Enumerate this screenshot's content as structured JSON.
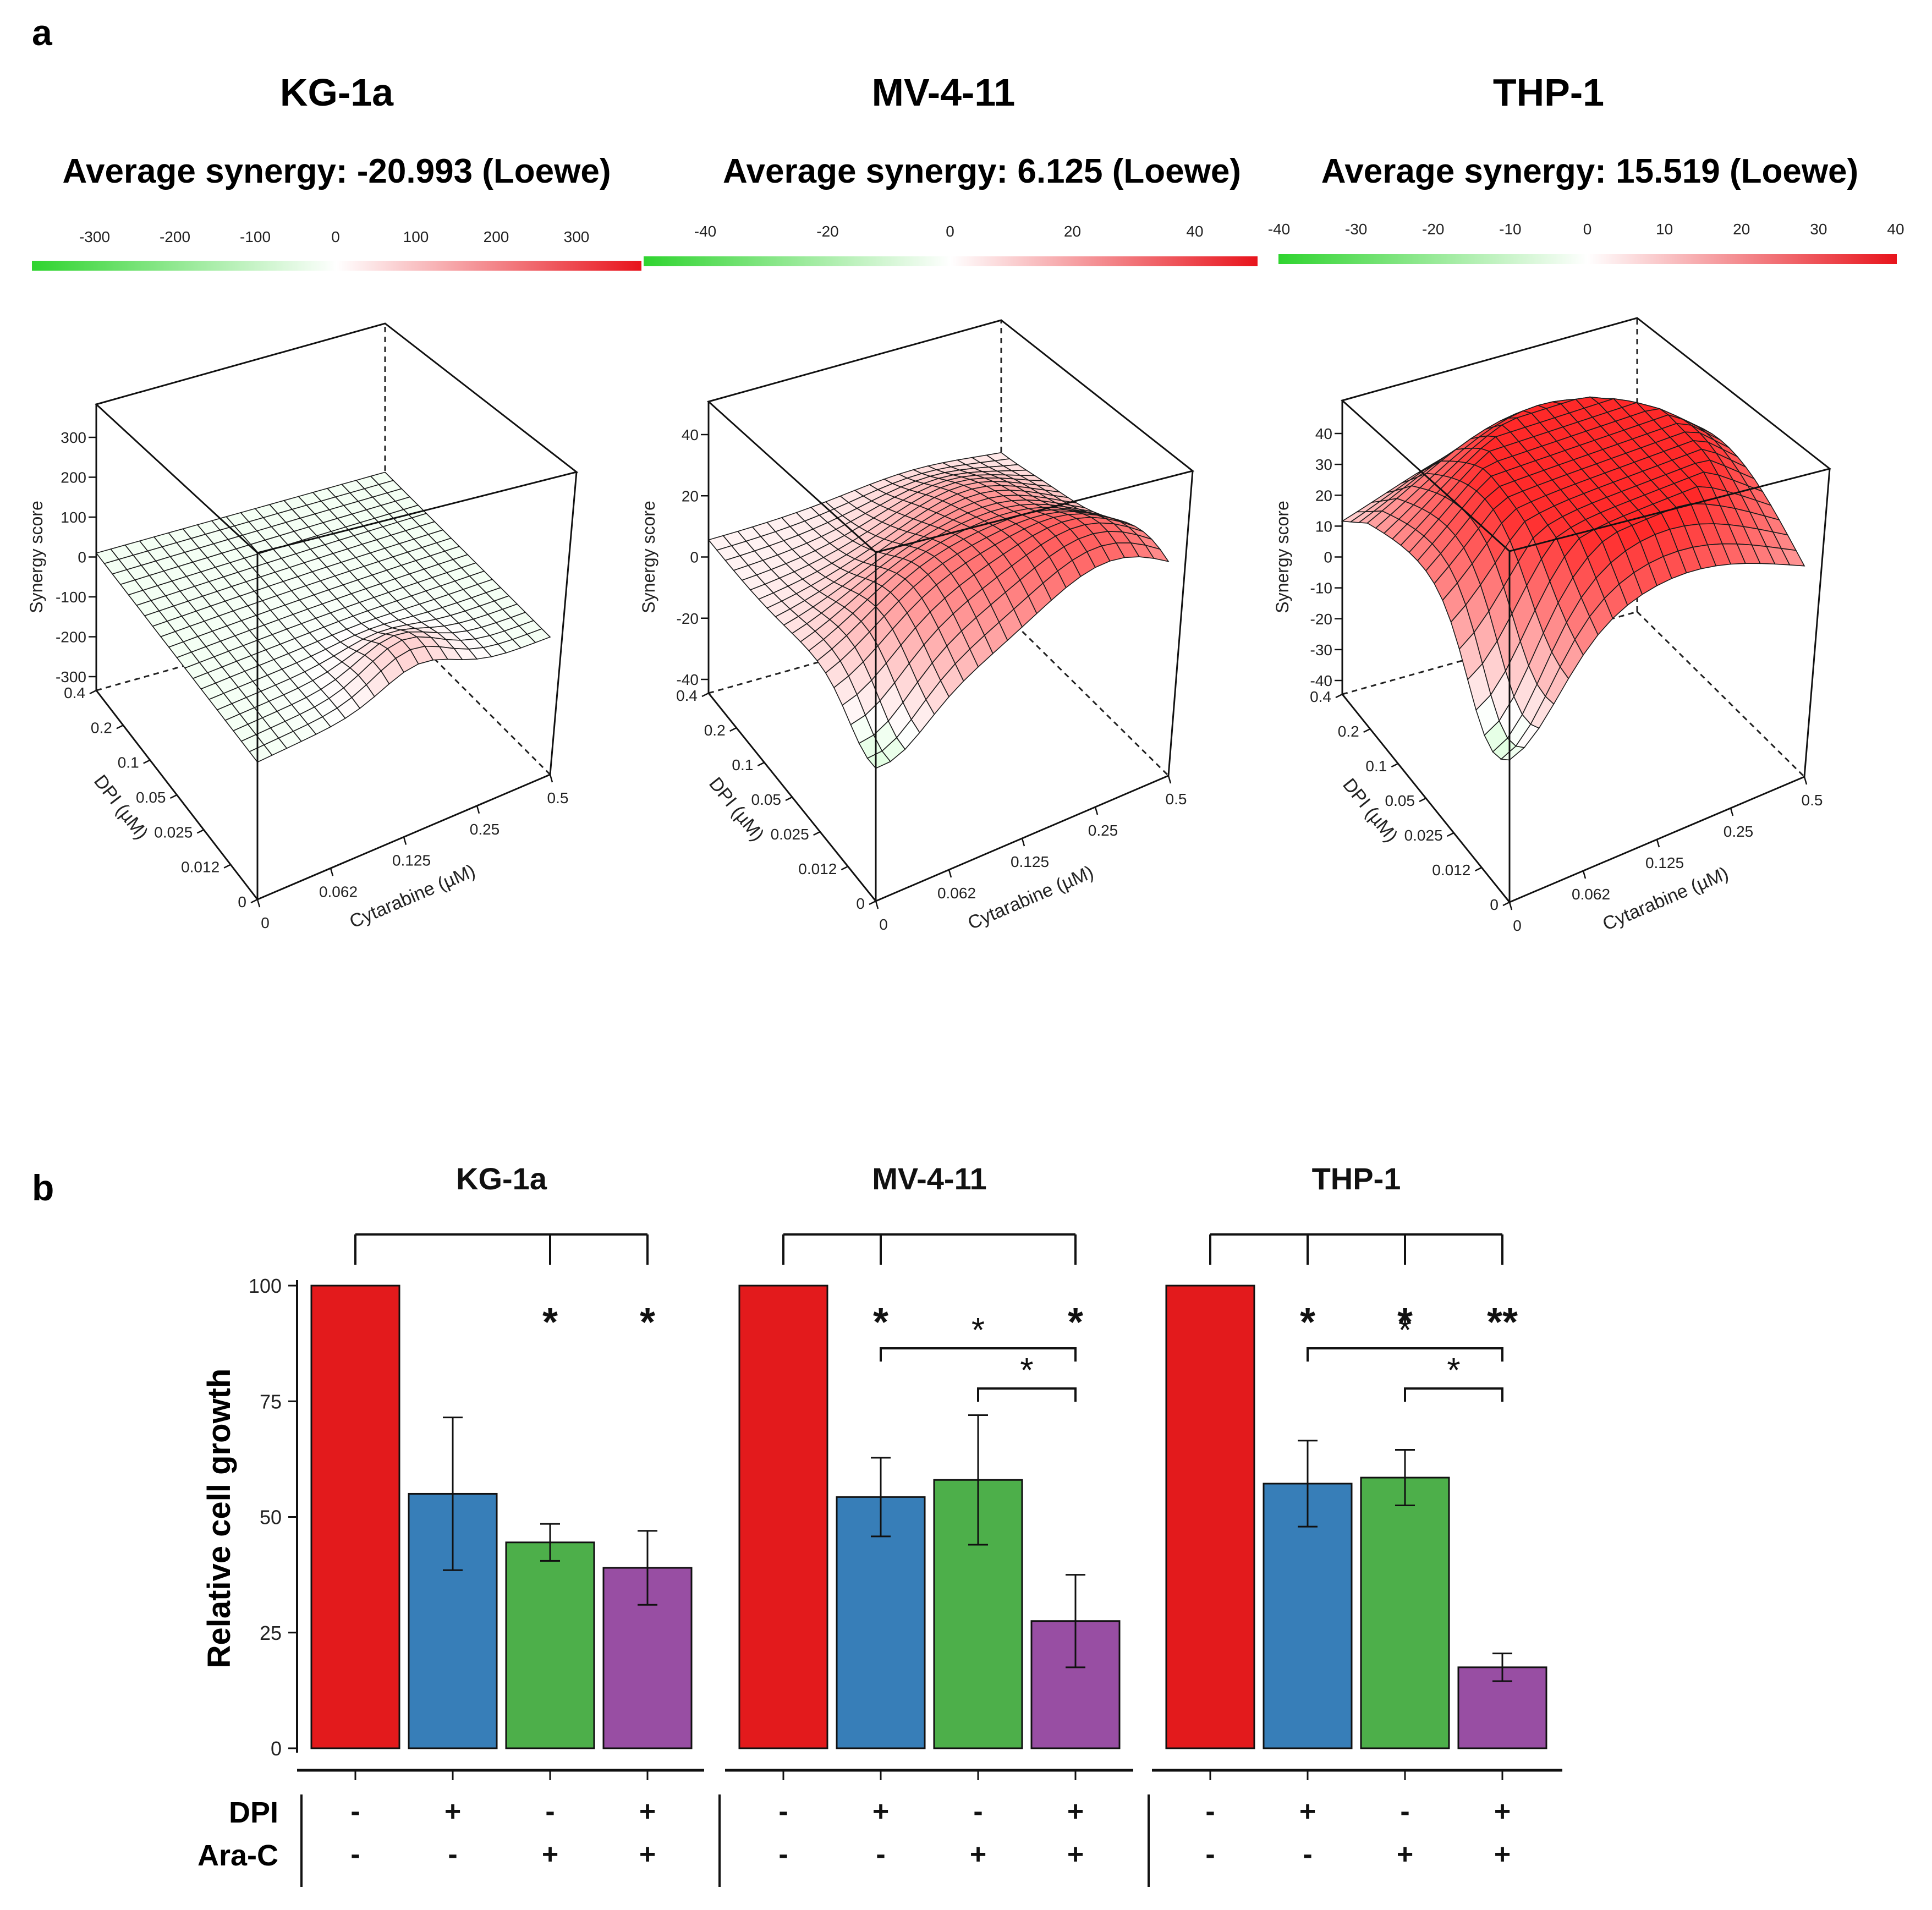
{
  "panel_a": {
    "label": "a",
    "charts": [
      {
        "cell_line": "KG-1a",
        "synergy_text": "Average synergy: -20.993 (Loewe)",
        "colorbar_ticks": [
          "-300",
          "-200",
          "-100",
          "0",
          "100",
          "200",
          "300"
        ],
        "z_ticks": [
          "300",
          "200",
          "100",
          "0",
          "-100",
          "-200",
          "-300"
        ],
        "z_label": "Synergy score",
        "dpi_ticks": [
          "0.4",
          "0.2",
          "0.1",
          "0.05",
          "0.025",
          "0.012",
          "0"
        ],
        "dpi_label": "DPI (µM)",
        "cyt_ticks": [
          "0",
          "0.062",
          "0.125",
          "0.25",
          "0.5"
        ],
        "cyt_label": "Cytarabine (µM)"
      },
      {
        "cell_line": "MV-4-11",
        "synergy_text": "Average synergy: 6.125 (Loewe)",
        "colorbar_ticks": [
          "-40",
          "-20",
          "0",
          "20",
          "40"
        ],
        "z_ticks": [
          "40",
          "20",
          "0",
          "-20",
          "-40"
        ],
        "z_label": "Synergy score",
        "dpi_ticks": [
          "0.4",
          "0.2",
          "0.1",
          "0.05",
          "0.025",
          "0.012",
          "0"
        ],
        "dpi_label": "DPI (µM)",
        "cyt_ticks": [
          "0",
          "0.062",
          "0.125",
          "0.25",
          "0.5"
        ],
        "cyt_label": "Cytarabine (µM)"
      },
      {
        "cell_line": "THP-1",
        "synergy_text": "Average synergy: 15.519 (Loewe)",
        "colorbar_ticks": [
          "-40",
          "-30",
          "-20",
          "-10",
          "0",
          "10",
          "20",
          "30",
          "40"
        ],
        "z_ticks": [
          "40",
          "30",
          "20",
          "10",
          "0",
          "-10",
          "-20",
          "-30",
          "-40"
        ],
        "z_label": "Synergy score",
        "dpi_ticks": [
          "0.4",
          "0.2",
          "0.1",
          "0.05",
          "0.025",
          "0.012",
          "0"
        ],
        "dpi_label": "DPI (µM)",
        "cyt_ticks": [
          "0",
          "0.062",
          "0.125",
          "0.25",
          "0.5"
        ],
        "cyt_label": "Cytarabine (µM)"
      }
    ],
    "colors": {
      "green": "#2fd42f",
      "red": "#e8141c",
      "mid": "#ffffff"
    }
  },
  "chart_data": {
    "type": "bar",
    "panel_label": "b",
    "ylabel": "Relative cell growth",
    "ylim": [
      0,
      100
    ],
    "yticks": [
      "100",
      "75",
      "50",
      "25",
      "0"
    ],
    "row_labels": [
      "DPI",
      "Ara-C"
    ],
    "colors": [
      "#e31a1c",
      "#377eb8",
      "#4daf4a",
      "#984ea3"
    ],
    "groups": [
      {
        "title": "KG-1a",
        "values": [
          100,
          55,
          44.5,
          39
        ],
        "errors": [
          0,
          16.5,
          4,
          8
        ],
        "dpi": [
          "-",
          "+",
          "-",
          "+"
        ],
        "arac": [
          "-",
          "-",
          "+",
          "+"
        ],
        "stars": [
          "",
          "",
          "*",
          "*"
        ],
        "brackets": []
      },
      {
        "title": "MV-4-11",
        "values": [
          100,
          54.3,
          58,
          27.5
        ],
        "errors": [
          0,
          8.5,
          14,
          10
        ],
        "dpi": [
          "-",
          "+",
          "-",
          "+"
        ],
        "arac": [
          "-",
          "-",
          "+",
          "+"
        ],
        "stars": [
          "",
          "*",
          "",
          "*"
        ],
        "brackets": [
          {
            "from": 1,
            "to": 3,
            "label": "*"
          },
          {
            "from": 2,
            "to": 3,
            "label": "*"
          }
        ]
      },
      {
        "title": "THP-1",
        "values": [
          100,
          57.2,
          58.5,
          17.5
        ],
        "errors": [
          0,
          9.3,
          6,
          3
        ],
        "dpi": [
          "-",
          "+",
          "-",
          "+"
        ],
        "arac": [
          "-",
          "-",
          "+",
          "+"
        ],
        "stars": [
          "",
          "*",
          "*",
          "**"
        ],
        "brackets": [
          {
            "from": 1,
            "to": 3,
            "label": "*"
          },
          {
            "from": 2,
            "to": 3,
            "label": "*"
          }
        ]
      }
    ]
  }
}
